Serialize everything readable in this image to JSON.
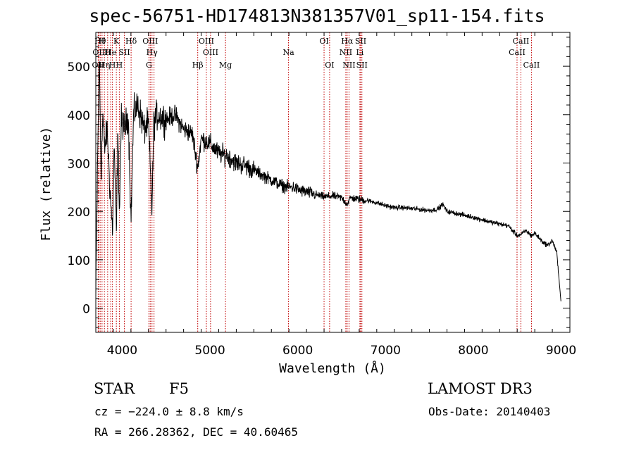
{
  "chart_data": {
    "type": "line",
    "title": "spec-56751-HD174813N381357V01_sp11-154.fits",
    "xlabel": "Wavelength (Å)",
    "ylabel": "Flux (relative)",
    "xlim": [
      3700,
      9100
    ],
    "ylim": [
      -50,
      570
    ],
    "xticks": [
      4000,
      5000,
      6000,
      7000,
      8000,
      9000
    ],
    "yticks": [
      0,
      100,
      200,
      300,
      400,
      500
    ],
    "series": [
      {
        "name": "spectrum",
        "x": [
          3700,
          3720,
          3740,
          3760,
          3780,
          3800,
          3830,
          3860,
          3890,
          3910,
          3935,
          3950,
          3970,
          3990,
          4030,
          4070,
          4101,
          4130,
          4180,
          4250,
          4300,
          4340,
          4360,
          4400,
          4500,
          4600,
          4700,
          4800,
          4861,
          4900,
          5000,
          5100,
          5200,
          5300,
          5400,
          5500,
          5600,
          5700,
          5800,
          5890,
          5950,
          6000,
          6100,
          6200,
          6300,
          6400,
          6500,
          6563,
          6600,
          6700,
          6800,
          6900,
          7000,
          7100,
          7200,
          7300,
          7400,
          7500,
          7600,
          7650,
          7700,
          7800,
          7900,
          8000,
          8100,
          8200,
          8300,
          8400,
          8498,
          8542,
          8600,
          8662,
          8700,
          8750,
          8800,
          8850,
          8900,
          8950,
          9000
        ],
        "y": [
          20,
          300,
          520,
          280,
          400,
          330,
          370,
          250,
          160,
          340,
          150,
          360,
          200,
          390,
          370,
          400,
          180,
          400,
          420,
          370,
          380,
          200,
          380,
          400,
          390,
          400,
          370,
          360,
          290,
          350,
          340,
          320,
          315,
          300,
          295,
          285,
          275,
          265,
          255,
          250,
          250,
          245,
          240,
          235,
          230,
          232,
          228,
          215,
          228,
          225,
          222,
          218,
          212,
          208,
          208,
          206,
          204,
          202,
          205,
          215,
          200,
          196,
          192,
          188,
          183,
          178,
          174,
          170,
          150,
          152,
          160,
          150,
          155,
          145,
          135,
          130,
          140,
          115,
          10
        ]
      }
    ],
    "lines": [
      {
        "wl": 3727,
        "label": "OII",
        "row": 3
      },
      {
        "wl": 3734,
        "label": "OII",
        "row": 2
      },
      {
        "wl": 3750,
        "label": "Hθ",
        "row": 1
      },
      {
        "wl": 3771,
        "label": "H",
        "row": 1
      },
      {
        "wl": 3798,
        "label": "Hη",
        "row": 3
      },
      {
        "wl": 3835,
        "label": "H",
        "row": 2
      },
      {
        "wl": 3870,
        "label": "He",
        "row": 2
      },
      {
        "wl": 3889,
        "label": "H",
        "row": 3
      },
      {
        "wl": 3934,
        "label": "K",
        "row": 1
      },
      {
        "wl": 3968,
        "label": "H",
        "row": 3
      },
      {
        "wl": 4026,
        "label": "SII",
        "row": 2
      },
      {
        "wl": 4102,
        "label": "Hδ",
        "row": 1
      },
      {
        "wl": 4305,
        "label": "G",
        "row": 3
      },
      {
        "wl": 4320,
        "label": "OIII",
        "row": 1
      },
      {
        "wl": 4340,
        "label": "Hγ",
        "row": 2
      },
      {
        "wl": 4363,
        "label": "",
        "row": 0
      },
      {
        "wl": 4861,
        "label": "Hβ",
        "row": 3
      },
      {
        "wl": 4959,
        "label": "OIII",
        "row": 1
      },
      {
        "wl": 5007,
        "label": "OIII",
        "row": 2
      },
      {
        "wl": 5177,
        "label": "Mg",
        "row": 3
      },
      {
        "wl": 5895,
        "label": "Na",
        "row": 2
      },
      {
        "wl": 6300,
        "label": "OI",
        "row": 1
      },
      {
        "wl": 6363,
        "label": "OI",
        "row": 3
      },
      {
        "wl": 6548,
        "label": "NII",
        "row": 2
      },
      {
        "wl": 6563,
        "label": "Hα",
        "row": 1
      },
      {
        "wl": 6584,
        "label": "NII",
        "row": 3
      },
      {
        "wl": 6708,
        "label": "Li",
        "row": 2
      },
      {
        "wl": 6717,
        "label": "SII",
        "row": 1
      },
      {
        "wl": 6731,
        "label": "SII",
        "row": 3
      },
      {
        "wl": 8498,
        "label": "CaII",
        "row": 2
      },
      {
        "wl": 8542,
        "label": "CaII",
        "row": 1
      },
      {
        "wl": 8662,
        "label": "CaII",
        "row": 3
      }
    ]
  },
  "info": {
    "object_class": "STAR",
    "subclass": "F5",
    "survey": "LAMOST DR3",
    "redshift": "cz = −224.0 ± 8.8 km/s",
    "obs_date": "Obs-Date: 20140403",
    "coords": "RA = 266.28362, DEC =  40.60465"
  }
}
